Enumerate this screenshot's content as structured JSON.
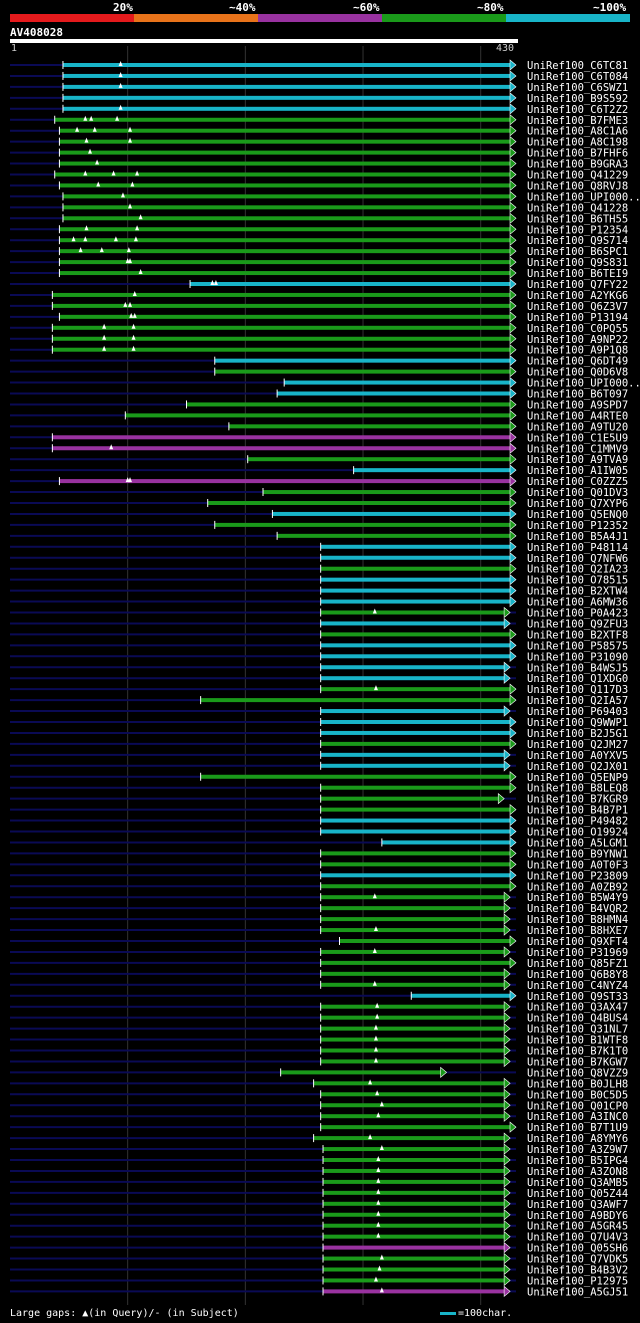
{
  "query": {
    "id": "AV408028",
    "start": "1",
    "end": "430",
    "length": 430
  },
  "legend": [
    {
      "label": "20%",
      "color": "#e41a1c"
    },
    {
      "label": "~40%",
      "color": "#e8731a"
    },
    {
      "label": "~60%",
      "color": "#9932a0"
    },
    {
      "label": "~80%",
      "color": "#1a9a1a"
    },
    {
      "label": "~100%",
      "color": "#18b4c8"
    }
  ],
  "colors": {
    "cyan": "#18b4c8",
    "green": "#1a9a1a",
    "purple": "#9932a0",
    "faint": "#0a0a55",
    "gap": "#ffffff"
  },
  "footer": {
    "gaps_label": "Large gaps: ▲(in Query)/- (in Subject)",
    "scale_label": "=100char."
  },
  "chart_data": {
    "type": "alignment",
    "title": "AV408028",
    "query_range": [
      1,
      430
    ],
    "hits": [
      {
        "label": "UniRef100_C6TC81",
        "start": 45,
        "end": 430,
        "color": "cyan",
        "gaps": [
          94
        ]
      },
      {
        "label": "UniRef100_C6T084",
        "start": 45,
        "end": 430,
        "color": "cyan",
        "gaps": [
          94
        ]
      },
      {
        "label": "UniRef100_C6SWZ1",
        "start": 45,
        "end": 430,
        "color": "cyan",
        "gaps": [
          94
        ]
      },
      {
        "label": "UniRef100_B9S592",
        "start": 45,
        "end": 430,
        "color": "cyan",
        "gaps": []
      },
      {
        "label": "UniRef100_C6T2Z2",
        "start": 45,
        "end": 430,
        "color": "cyan",
        "gaps": [
          94
        ]
      },
      {
        "label": "UniRef100_B7FME3",
        "start": 38,
        "end": 430,
        "color": "green",
        "gaps": [
          64,
          69,
          91
        ]
      },
      {
        "label": "UniRef100_A8C1A6",
        "start": 42,
        "end": 430,
        "color": "green",
        "gaps": [
          57,
          72,
          102
        ]
      },
      {
        "label": "UniRef100_A8C198",
        "start": 42,
        "end": 430,
        "color": "green",
        "gaps": [
          65,
          102
        ]
      },
      {
        "label": "UniRef100_B7FHF6",
        "start": 42,
        "end": 430,
        "color": "green",
        "gaps": [
          68
        ]
      },
      {
        "label": "UniRef100_B9GRA3",
        "start": 42,
        "end": 430,
        "color": "green",
        "gaps": [
          74
        ]
      },
      {
        "label": "UniRef100_Q41229",
        "start": 38,
        "end": 430,
        "color": "green",
        "gaps": [
          64,
          88,
          108
        ]
      },
      {
        "label": "UniRef100_Q8RVJ8",
        "start": 42,
        "end": 430,
        "color": "green",
        "gaps": [
          75,
          104
        ]
      },
      {
        "label": "UniRef100_UPI000..",
        "start": 45,
        "end": 430,
        "color": "green",
        "gaps": [
          96
        ]
      },
      {
        "label": "UniRef100_Q41228",
        "start": 45,
        "end": 430,
        "color": "green",
        "gaps": [
          102
        ]
      },
      {
        "label": "UniRef100_B6TH55",
        "start": 45,
        "end": 430,
        "color": "green",
        "gaps": [
          111
        ]
      },
      {
        "label": "UniRef100_P12354",
        "start": 42,
        "end": 430,
        "color": "green",
        "gaps": [
          65,
          108
        ]
      },
      {
        "label": "UniRef100_Q9S714",
        "start": 42,
        "end": 430,
        "color": "green",
        "gaps": [
          54,
          64,
          90,
          107
        ]
      },
      {
        "label": "UniRef100_B6SPC1",
        "start": 42,
        "end": 430,
        "color": "green",
        "gaps": [
          60,
          78,
          101
        ]
      },
      {
        "label": "UniRef100_Q9S831",
        "start": 42,
        "end": 430,
        "color": "green",
        "gaps": [
          100,
          102
        ]
      },
      {
        "label": "UniRef100_B6TEI9",
        "start": 42,
        "end": 430,
        "color": "green",
        "gaps": [
          111
        ]
      },
      {
        "label": "UniRef100_Q7FY22",
        "start": 153,
        "end": 430,
        "color": "cyan",
        "gaps": [
          172,
          175
        ]
      },
      {
        "label": "UniRef100_A2YKG6",
        "start": 36,
        "end": 430,
        "color": "green",
        "gaps": [
          106
        ]
      },
      {
        "label": "UniRef100_Q6Z3V7",
        "start": 36,
        "end": 430,
        "color": "green",
        "gaps": [
          98,
          102
        ]
      },
      {
        "label": "UniRef100_P13194",
        "start": 42,
        "end": 430,
        "color": "green",
        "gaps": [
          103,
          106
        ]
      },
      {
        "label": "UniRef100_C0PQ55",
        "start": 36,
        "end": 430,
        "color": "green",
        "gaps": [
          80,
          105
        ]
      },
      {
        "label": "UniRef100_A9NP22",
        "start": 36,
        "end": 430,
        "color": "green",
        "gaps": [
          80,
          105
        ]
      },
      {
        "label": "UniRef100_A9P1Q8",
        "start": 36,
        "end": 430,
        "color": "green",
        "gaps": [
          80,
          105
        ]
      },
      {
        "label": "UniRef100_Q6DT49",
        "start": 174,
        "end": 430,
        "color": "cyan",
        "gaps": []
      },
      {
        "label": "UniRef100_Q0D6V8",
        "start": 174,
        "end": 430,
        "color": "green",
        "gaps": []
      },
      {
        "label": "UniRef100_UPI000..",
        "start": 233,
        "end": 430,
        "color": "cyan",
        "gaps": []
      },
      {
        "label": "UniRef100_B6T097",
        "start": 227,
        "end": 430,
        "color": "cyan",
        "gaps": []
      },
      {
        "label": "UniRef100_A9SPD7",
        "start": 150,
        "end": 430,
        "color": "green",
        "gaps": []
      },
      {
        "label": "UniRef100_A4RTE0",
        "start": 98,
        "end": 430,
        "color": "green",
        "gaps": []
      },
      {
        "label": "UniRef100_A9TU20",
        "start": 186,
        "end": 430,
        "color": "green",
        "gaps": []
      },
      {
        "label": "UniRef100_C1E5U9",
        "start": 36,
        "end": 430,
        "color": "purple",
        "gaps": []
      },
      {
        "label": "UniRef100_C1MMV9",
        "start": 36,
        "end": 430,
        "color": "purple",
        "gaps": [
          86
        ]
      },
      {
        "label": "UniRef100_A9TVA9",
        "start": 202,
        "end": 430,
        "color": "green",
        "gaps": []
      },
      {
        "label": "UniRef100_A1IW05",
        "start": 292,
        "end": 430,
        "color": "cyan",
        "gaps": []
      },
      {
        "label": "UniRef100_C0ZZZ5",
        "start": 42,
        "end": 430,
        "color": "purple",
        "gaps": [
          100,
          102
        ]
      },
      {
        "label": "UniRef100_Q01DV3",
        "start": 215,
        "end": 430,
        "color": "green",
        "gaps": []
      },
      {
        "label": "UniRef100_Q7XYP6",
        "start": 168,
        "end": 430,
        "color": "green",
        "gaps": []
      },
      {
        "label": "UniRef100_Q5ENQ0",
        "start": 223,
        "end": 430,
        "color": "cyan",
        "gaps": []
      },
      {
        "label": "UniRef100_P12352",
        "start": 174,
        "end": 430,
        "color": "green",
        "gaps": []
      },
      {
        "label": "UniRef100_B5A4J1",
        "start": 227,
        "end": 430,
        "color": "green",
        "gaps": []
      },
      {
        "label": "UniRef100_P48114",
        "start": 264,
        "end": 430,
        "color": "cyan",
        "gaps": []
      },
      {
        "label": "UniRef100_Q7NFW6",
        "start": 264,
        "end": 430,
        "color": "cyan",
        "gaps": []
      },
      {
        "label": "UniRef100_Q2IA23",
        "start": 264,
        "end": 430,
        "color": "green",
        "gaps": []
      },
      {
        "label": "UniRef100_O78515",
        "start": 264,
        "end": 430,
        "color": "cyan",
        "gaps": []
      },
      {
        "label": "UniRef100_B2XTW4",
        "start": 264,
        "end": 430,
        "color": "cyan",
        "gaps": []
      },
      {
        "label": "UniRef100_A6MW36",
        "start": 264,
        "end": 430,
        "color": "cyan",
        "gaps": []
      },
      {
        "label": "UniRef100_P0A423",
        "start": 264,
        "end": 425,
        "color": "green",
        "gaps": [
          310
        ]
      },
      {
        "label": "UniRef100_Q9ZFU3",
        "start": 264,
        "end": 425,
        "color": "cyan",
        "gaps": []
      },
      {
        "label": "UniRef100_B2XTF8",
        "start": 264,
        "end": 430,
        "color": "green",
        "gaps": []
      },
      {
        "label": "UniRef100_P58575",
        "start": 264,
        "end": 430,
        "color": "cyan",
        "gaps": []
      },
      {
        "label": "UniRef100_P31090",
        "start": 264,
        "end": 430,
        "color": "cyan",
        "gaps": []
      },
      {
        "label": "UniRef100_B4WSJ5",
        "start": 264,
        "end": 425,
        "color": "cyan",
        "gaps": []
      },
      {
        "label": "UniRef100_Q1XDG0",
        "start": 264,
        "end": 425,
        "color": "cyan",
        "gaps": []
      },
      {
        "label": "UniRef100_Q117D3",
        "start": 264,
        "end": 430,
        "color": "green",
        "gaps": [
          311
        ]
      },
      {
        "label": "UniRef100_Q2IA57",
        "start": 162,
        "end": 430,
        "color": "green",
        "gaps": []
      },
      {
        "label": "UniRef100_P69403",
        "start": 264,
        "end": 425,
        "color": "cyan",
        "gaps": []
      },
      {
        "label": "UniRef100_Q9WWP1",
        "start": 264,
        "end": 430,
        "color": "cyan",
        "gaps": []
      },
      {
        "label": "UniRef100_B2J5G1",
        "start": 264,
        "end": 430,
        "color": "cyan",
        "gaps": []
      },
      {
        "label": "UniRef100_Q2JM27",
        "start": 264,
        "end": 430,
        "color": "green",
        "gaps": []
      },
      {
        "label": "UniRef100_A0YXV5",
        "start": 264,
        "end": 425,
        "color": "cyan",
        "gaps": []
      },
      {
        "label": "UniRef100_Q2JX01",
        "start": 264,
        "end": 425,
        "color": "cyan",
        "gaps": []
      },
      {
        "label": "UniRef100_Q5ENP9",
        "start": 162,
        "end": 430,
        "color": "green",
        "gaps": []
      },
      {
        "label": "UniRef100_B8LEQ8",
        "start": 264,
        "end": 430,
        "color": "green",
        "gaps": []
      },
      {
        "label": "UniRef100_B7KGR9",
        "start": 264,
        "end": 420,
        "color": "green",
        "gaps": []
      },
      {
        "label": "UniRef100_B4B7P1",
        "start": 264,
        "end": 430,
        "color": "green",
        "gaps": []
      },
      {
        "label": "UniRef100_P49482",
        "start": 264,
        "end": 430,
        "color": "cyan",
        "gaps": []
      },
      {
        "label": "UniRef100_O19924",
        "start": 264,
        "end": 430,
        "color": "cyan",
        "gaps": []
      },
      {
        "label": "UniRef100_A5LGM1",
        "start": 316,
        "end": 430,
        "color": "cyan",
        "gaps": []
      },
      {
        "label": "UniRef100_B9YNW1",
        "start": 264,
        "end": 430,
        "color": "green",
        "gaps": []
      },
      {
        "label": "UniRef100_A0T0F3",
        "start": 264,
        "end": 430,
        "color": "green",
        "gaps": []
      },
      {
        "label": "UniRef100_P23809",
        "start": 264,
        "end": 430,
        "color": "cyan",
        "gaps": []
      },
      {
        "label": "UniRef100_A0ZB92",
        "start": 264,
        "end": 430,
        "color": "green",
        "gaps": []
      },
      {
        "label": "UniRef100_B5W4Y9",
        "start": 264,
        "end": 425,
        "color": "green",
        "gaps": [
          310
        ]
      },
      {
        "label": "UniRef100_B4VQR2",
        "start": 264,
        "end": 425,
        "color": "green",
        "gaps": []
      },
      {
        "label": "UniRef100_B8HMN4",
        "start": 264,
        "end": 425,
        "color": "green",
        "gaps": []
      },
      {
        "label": "UniRef100_B8HXE7",
        "start": 264,
        "end": 425,
        "color": "green",
        "gaps": [
          311
        ]
      },
      {
        "label": "UniRef100_Q9XFT4",
        "start": 280,
        "end": 430,
        "color": "green",
        "gaps": []
      },
      {
        "label": "UniRef100_P31969",
        "start": 264,
        "end": 425,
        "color": "green",
        "gaps": [
          310
        ]
      },
      {
        "label": "UniRef100_Q85FZ1",
        "start": 264,
        "end": 430,
        "color": "green",
        "gaps": []
      },
      {
        "label": "UniRef100_Q6B8Y8",
        "start": 264,
        "end": 425,
        "color": "green",
        "gaps": []
      },
      {
        "label": "UniRef100_C4NYZ4",
        "start": 264,
        "end": 425,
        "color": "green",
        "gaps": [
          310
        ]
      },
      {
        "label": "UniRef100_Q9ST33",
        "start": 341,
        "end": 430,
        "color": "cyan",
        "gaps": []
      },
      {
        "label": "UniRef100_Q3AX47",
        "start": 264,
        "end": 425,
        "color": "green",
        "gaps": [
          312
        ]
      },
      {
        "label": "UniRef100_Q4BUS4",
        "start": 264,
        "end": 425,
        "color": "green",
        "gaps": [
          312
        ]
      },
      {
        "label": "UniRef100_Q31NL7",
        "start": 264,
        "end": 425,
        "color": "green",
        "gaps": [
          311
        ]
      },
      {
        "label": "UniRef100_B1WTF8",
        "start": 264,
        "end": 425,
        "color": "green",
        "gaps": [
          311
        ]
      },
      {
        "label": "UniRef100_B7K1T0",
        "start": 264,
        "end": 425,
        "color": "green",
        "gaps": [
          311
        ]
      },
      {
        "label": "UniRef100_B7KGW7",
        "start": 264,
        "end": 425,
        "color": "green",
        "gaps": [
          311
        ]
      },
      {
        "label": "UniRef100_Q8VZZ9",
        "start": 230,
        "end": 371,
        "color": "green",
        "gaps": []
      },
      {
        "label": "UniRef100_B0JLH8",
        "start": 258,
        "end": 425,
        "color": "green",
        "gaps": [
          306
        ]
      },
      {
        "label": "UniRef100_B0C5D5",
        "start": 264,
        "end": 425,
        "color": "green",
        "gaps": [
          312
        ]
      },
      {
        "label": "UniRef100_Q01CP0",
        "start": 264,
        "end": 425,
        "color": "green",
        "gaps": [
          316
        ]
      },
      {
        "label": "UniRef100_A3INC0",
        "start": 264,
        "end": 425,
        "color": "green",
        "gaps": [
          313
        ]
      },
      {
        "label": "UniRef100_B7T1U9",
        "start": 264,
        "end": 430,
        "color": "green",
        "gaps": []
      },
      {
        "label": "UniRef100_A8YMY6",
        "start": 258,
        "end": 425,
        "color": "green",
        "gaps": [
          306
        ]
      },
      {
        "label": "UniRef100_A3Z9W7",
        "start": 266,
        "end": 425,
        "color": "green",
        "gaps": [
          316
        ]
      },
      {
        "label": "UniRef100_B5IPG4",
        "start": 266,
        "end": 425,
        "color": "green",
        "gaps": [
          313
        ]
      },
      {
        "label": "UniRef100_A3ZON8",
        "start": 266,
        "end": 425,
        "color": "green",
        "gaps": [
          313
        ]
      },
      {
        "label": "UniRef100_Q3AMB5",
        "start": 266,
        "end": 425,
        "color": "green",
        "gaps": [
          313
        ]
      },
      {
        "label": "UniRef100_Q05Z44",
        "start": 266,
        "end": 425,
        "color": "green",
        "gaps": [
          313
        ]
      },
      {
        "label": "UniRef100_Q3AWF7",
        "start": 266,
        "end": 425,
        "color": "green",
        "gaps": [
          313
        ]
      },
      {
        "label": "UniRef100_A9BDY6",
        "start": 266,
        "end": 425,
        "color": "green",
        "gaps": [
          313
        ]
      },
      {
        "label": "UniRef100_A5GR45",
        "start": 266,
        "end": 425,
        "color": "green",
        "gaps": [
          313
        ]
      },
      {
        "label": "UniRef100_Q7U4V3",
        "start": 266,
        "end": 425,
        "color": "green",
        "gaps": [
          313
        ]
      },
      {
        "label": "UniRef100_Q05SH6",
        "start": 266,
        "end": 425,
        "color": "purple",
        "gaps": []
      },
      {
        "label": "UniRef100_Q7VDK5",
        "start": 266,
        "end": 425,
        "color": "green",
        "gaps": [
          316
        ]
      },
      {
        "label": "UniRef100_B4B3V2",
        "start": 266,
        "end": 425,
        "color": "green",
        "gaps": [
          314
        ]
      },
      {
        "label": "UniRef100_P12975",
        "start": 266,
        "end": 425,
        "color": "green",
        "gaps": [
          311
        ]
      },
      {
        "label": "UniRef100_A5GJ51",
        "start": 266,
        "end": 425,
        "color": "purple",
        "gaps": [
          316
        ]
      }
    ]
  }
}
